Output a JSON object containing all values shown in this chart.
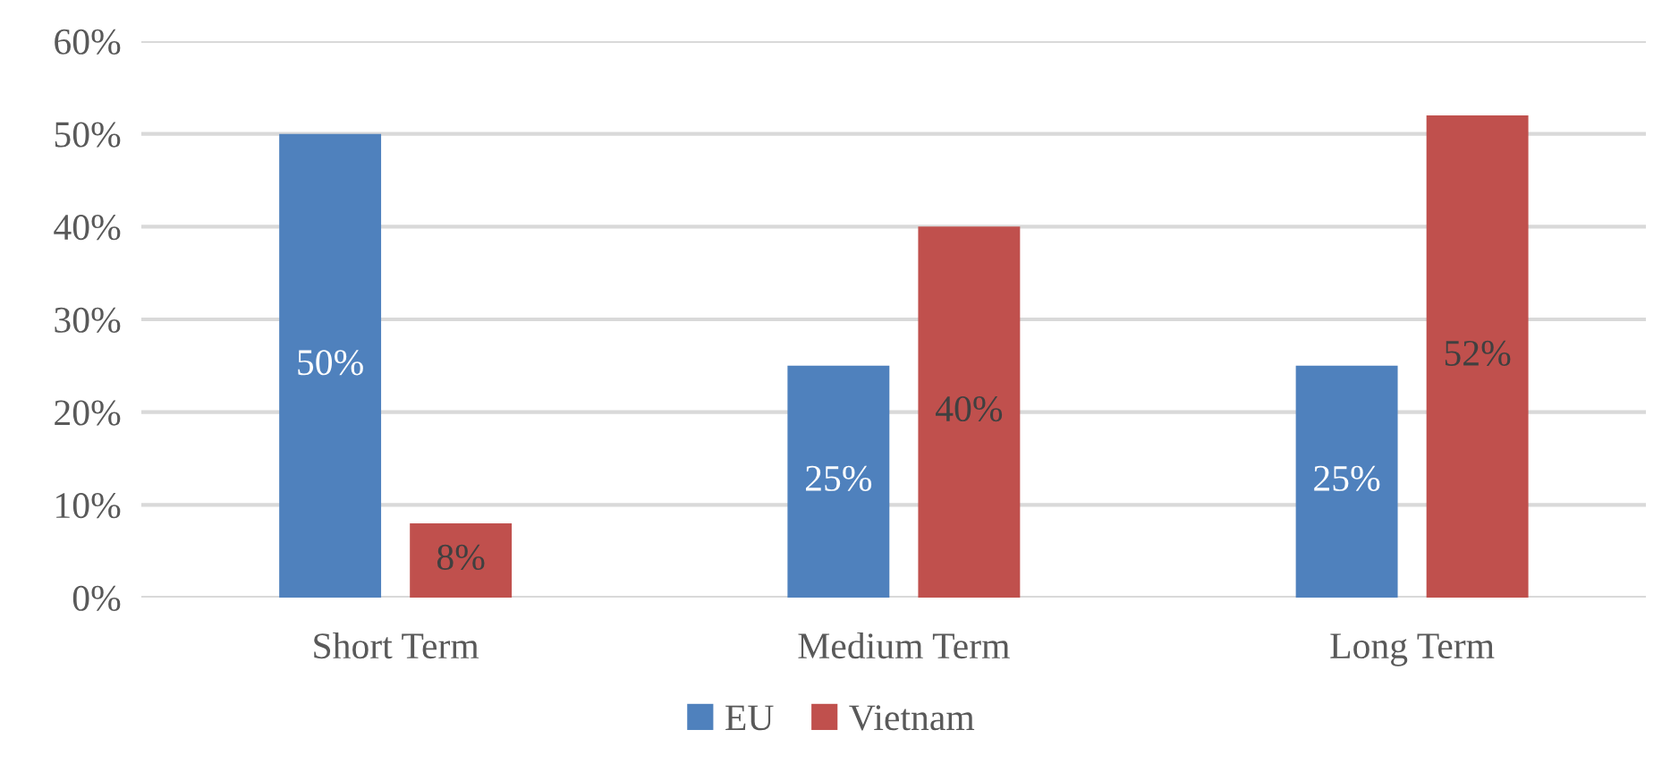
{
  "chart_data": {
    "type": "bar",
    "categories": [
      "Short Term",
      "Medium Term",
      "Long Term"
    ],
    "series": [
      {
        "name": "EU",
        "color": "#4f81bd",
        "values": [
          50,
          25,
          25
        ],
        "value_labels": [
          "50%",
          "25%",
          "25%"
        ]
      },
      {
        "name": "Vietnam",
        "color": "#c0504d",
        "values": [
          8,
          40,
          52
        ],
        "value_labels": [
          "8%",
          "40%",
          "52%"
        ]
      }
    ],
    "ylim": [
      0,
      60
    ],
    "yticks": [
      {
        "value": 0,
        "label": "0%"
      },
      {
        "value": 10,
        "label": "10%"
      },
      {
        "value": 20,
        "label": "20%"
      },
      {
        "value": 30,
        "label": "30%"
      },
      {
        "value": 40,
        "label": "40%"
      },
      {
        "value": 50,
        "label": "50%"
      },
      {
        "value": 60,
        "label": "60%"
      }
    ],
    "grid": "y",
    "legend": "bottom"
  }
}
